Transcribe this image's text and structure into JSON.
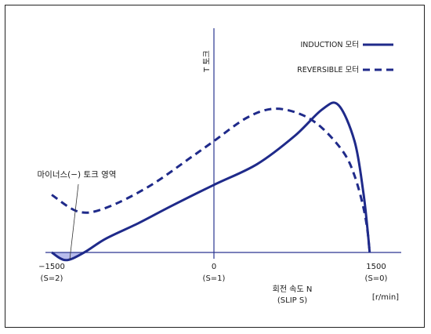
{
  "chart_data": {
    "type": "line",
    "title": "",
    "xlabel": "회전 속도 N",
    "xlabel_sub": "(SLIP S)",
    "xunit": "[r/min]",
    "ylabel": "T 토크",
    "xlim": [
      -1500,
      1500
    ],
    "x_ticks": [
      {
        "value": -1500,
        "label": "−1500",
        "sublabel": "(S=2)"
      },
      {
        "value": 0,
        "label": "0",
        "sublabel": "(S=1)"
      },
      {
        "value": 1500,
        "label": "1500",
        "sublabel": "(S=0)"
      }
    ],
    "grid": false,
    "legend_position": "top-right",
    "series": [
      {
        "name": "INDUCTION 모터",
        "style": "solid",
        "color": "#1f2a8a",
        "x": [
          -1500,
          -1370,
          -1200,
          -1000,
          -700,
          -400,
          0,
          400,
          750,
          1000,
          1150,
          1300,
          1380,
          1420,
          1440
        ],
        "y": [
          0,
          -0.1,
          0,
          0.18,
          0.38,
          0.6,
          0.88,
          1.15,
          1.52,
          1.86,
          1.92,
          1.45,
          0.8,
          0.3,
          0
        ]
      },
      {
        "name": "REVERSIBLE 모터",
        "style": "dashed",
        "color": "#1f2a8a",
        "x": [
          -1500,
          -1250,
          -1000,
          -600,
          -200,
          0,
          300,
          550,
          800,
          1000,
          1200,
          1300,
          1380,
          1420,
          1440
        ],
        "y": [
          0.75,
          0.53,
          0.58,
          0.86,
          1.25,
          1.45,
          1.75,
          1.87,
          1.8,
          1.62,
          1.3,
          1.0,
          0.6,
          0.28,
          0
        ]
      }
    ],
    "annotations": [
      {
        "text": "마이너스(−) 토크 영역",
        "target": "negative-torque-region"
      }
    ],
    "colors": {
      "series": "#1f2a8a",
      "negative_fill": "#b8bcec",
      "axis": "#2a3590"
    }
  }
}
